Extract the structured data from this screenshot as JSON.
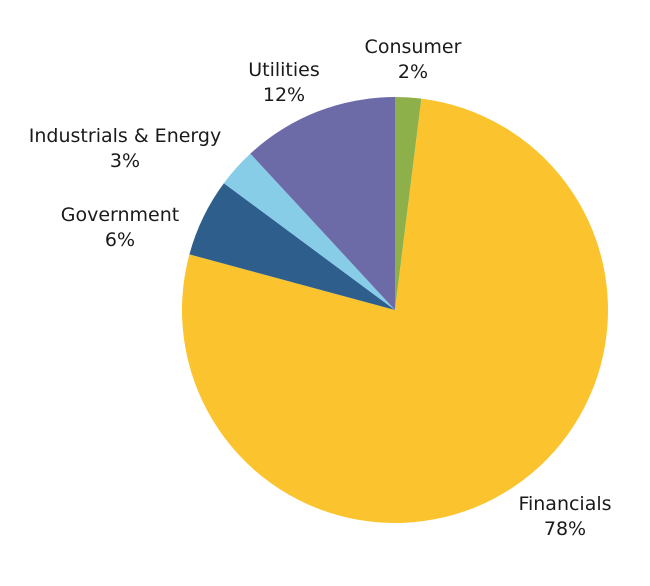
{
  "chart_data": {
    "type": "pie",
    "start_angle_deg": 0,
    "direction": "clockwise",
    "slices": [
      {
        "label": "Consumer",
        "value_label": "2%",
        "value": 2,
        "color": "#8db04a"
      },
      {
        "label": "Financials",
        "value_label": "78%",
        "value": 78,
        "color": "#fbc42e"
      },
      {
        "label": "Government",
        "value_label": "6%",
        "value": 6,
        "color": "#2e5f8c"
      },
      {
        "label": "Industrials & Energy",
        "value_label": "3%",
        "value": 3,
        "color": "#87cde8"
      },
      {
        "label": "Utilities",
        "value_label": "12%",
        "value": 12,
        "color": "#6c6ba8"
      }
    ],
    "legend": "none"
  }
}
